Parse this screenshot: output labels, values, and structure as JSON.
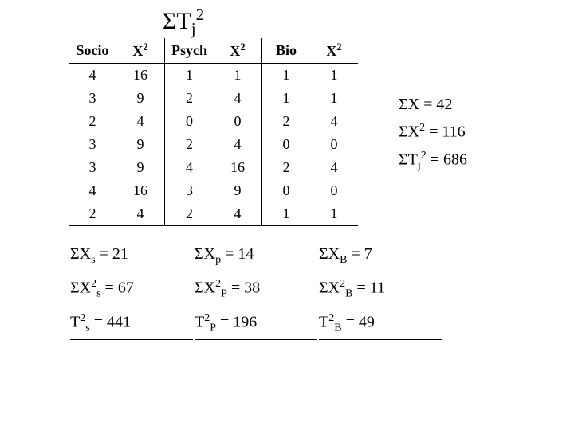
{
  "title_html": "ΣT<sub>j</sub><sup>2</sup>",
  "table": {
    "headers": [
      {
        "html": "Socio"
      },
      {
        "html": "X<sup>2</sup>"
      },
      {
        "html": "Psych"
      },
      {
        "html": "X<sup>2</sup>"
      },
      {
        "html": "Bio"
      },
      {
        "html": "X<sup>2</sup>"
      }
    ],
    "rows": [
      [
        4,
        16,
        1,
        1,
        1,
        1
      ],
      [
        3,
        9,
        2,
        4,
        1,
        1
      ],
      [
        2,
        4,
        0,
        0,
        2,
        4
      ],
      [
        3,
        9,
        2,
        4,
        0,
        0
      ],
      [
        3,
        9,
        4,
        16,
        2,
        4
      ],
      [
        4,
        16,
        3,
        9,
        0,
        0
      ],
      [
        2,
        4,
        2,
        4,
        1,
        1
      ]
    ],
    "sep_after_cols": [
      1,
      3
    ],
    "font_size": 18,
    "border_color": "#000000"
  },
  "column_summaries": [
    [
      "ΣX<sub>s</sub> = 21",
      "ΣX<sub>p</sub> = 14",
      "ΣX<sub>B</sub> = 7"
    ],
    [
      "ΣX<sup>2</sup><sub>s</sub> = 67",
      "ΣX<sup>2</sup><sub>P</sub> = 38",
      "ΣX<sup>2</sup><sub>B</sub> = 11"
    ],
    [
      "T<sup>2</sup><sub>s</sub> = 441",
      "T<sup>2</sup><sub>P</sub> = 196",
      "T<sup>2</sup><sub>B</sub> = 49"
    ]
  ],
  "side_totals": [
    "ΣX = 42",
    "ΣX<sup>2</sup> = 116",
    "ΣT<sub>j</sub><sup>2</sup> = 686"
  ],
  "colors": {
    "background": "#ffffff",
    "text": "#000000"
  }
}
